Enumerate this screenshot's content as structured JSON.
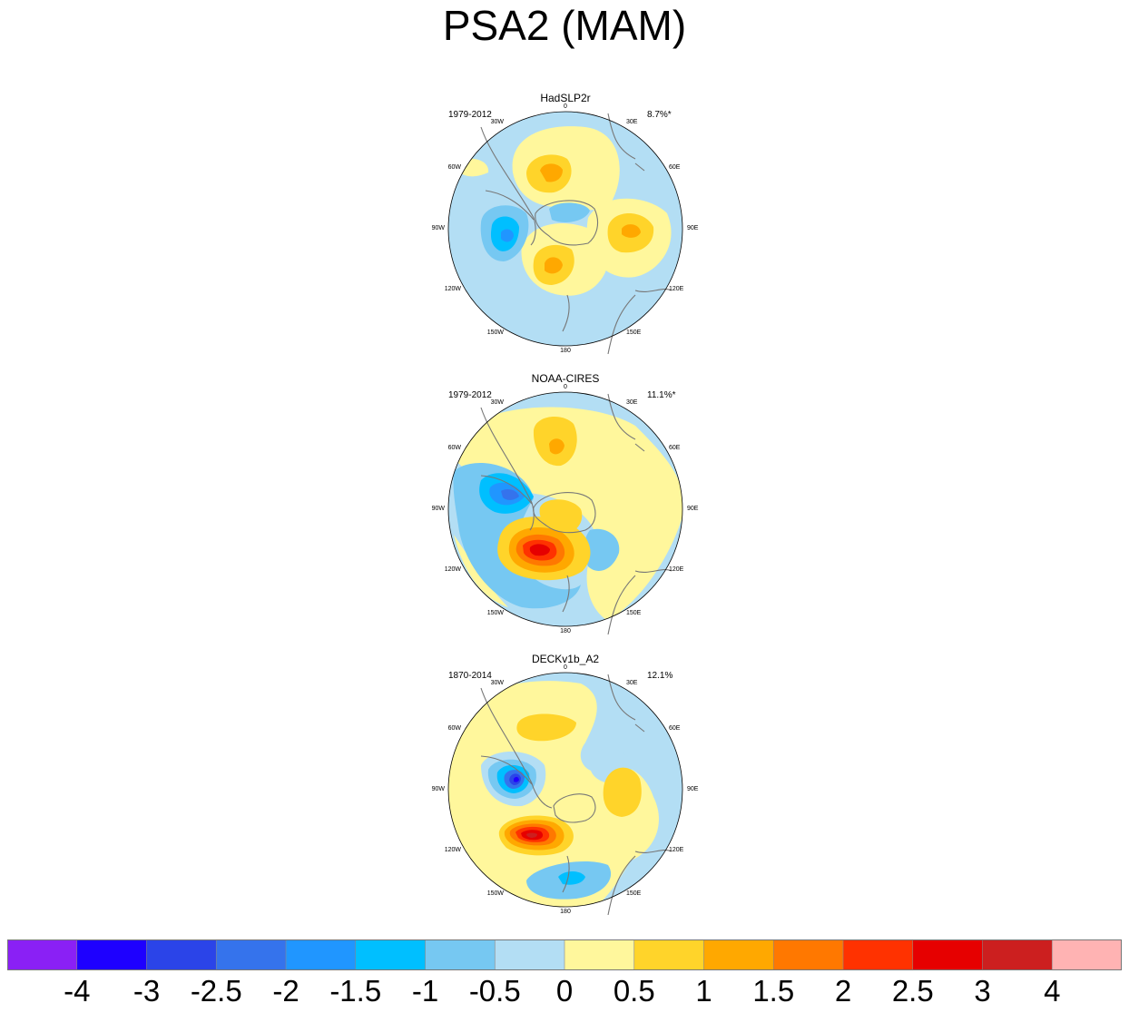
{
  "title": "PSA2 (MAM)",
  "panels": [
    {
      "name": "HadSLP2r",
      "years": "1979-2012",
      "pct": "8.7%*"
    },
    {
      "name": "NOAA-CIRES",
      "years": "1979-2012",
      "pct": "11.1%*"
    },
    {
      "name": "DECKv1b_A2",
      "years": "1870-2014",
      "pct": "12.1%"
    }
  ],
  "lon_labels": [
    "0",
    "30E",
    "60E",
    "90E",
    "120E",
    "150E",
    "180",
    "150W",
    "120W",
    "90W",
    "60W",
    "30W"
  ],
  "colorbar": {
    "colors": [
      "#8a20f5",
      "#1e00ff",
      "#2b44e8",
      "#3573ec",
      "#2096ff",
      "#00bfff",
      "#76c8f2",
      "#b3def4",
      "#fff79c",
      "#ffd42a",
      "#ffa800",
      "#ff7800",
      "#ff3200",
      "#e60000",
      "#cc1f1f",
      "#ffb3b3"
    ],
    "tick_labels": [
      "-4",
      "-3",
      "-2.5",
      "-2",
      "-1.5",
      "-1",
      "-0.5",
      "0",
      "0.5",
      "1",
      "1.5",
      "2",
      "2.5",
      "3",
      "4"
    ]
  }
}
